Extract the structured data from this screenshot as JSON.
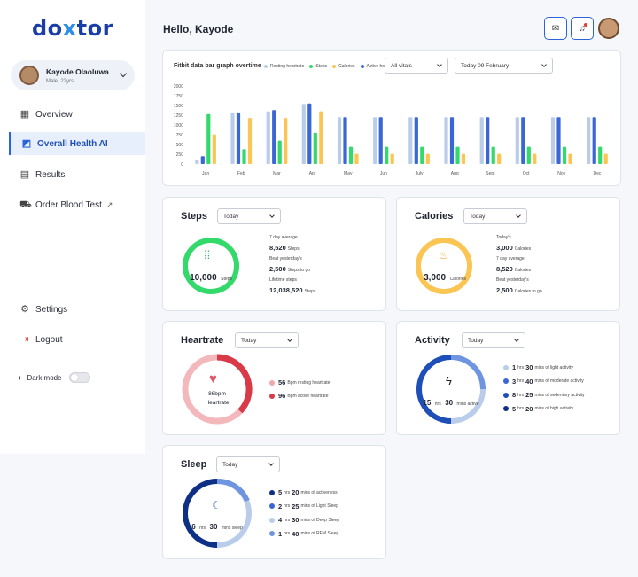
{
  "brand": {
    "left": "do",
    "x": "x",
    "right": "tor"
  },
  "profile": {
    "name": "Kayode Olaoluwa",
    "sub": "Male, 22yrs"
  },
  "nav": {
    "overview": "Overview",
    "health_ai": "Overall Health AI",
    "results": "Results",
    "order": "Order Blood Test",
    "settings": "Settings",
    "logout": "Logout"
  },
  "dark_mode": {
    "label": "Dark mode",
    "enabled": false
  },
  "header": {
    "greeting": "Hello, Kayode"
  },
  "chart": {
    "title": "Fitbit data bar graph overtime",
    "legend": [
      "Resting heartrate",
      "Steps",
      "Calories",
      "Active hours"
    ],
    "filter_vitals": "All vitals",
    "filter_date": "Today 09 February"
  },
  "chart_data": {
    "type": "bar",
    "categories": [
      "Jan",
      "Feb",
      "Mar",
      "Apr",
      "May",
      "Jun",
      "July",
      "Aug",
      "Sept",
      "Oct",
      "Nov",
      "Dec"
    ],
    "ylim": [
      0,
      2000
    ],
    "yticks": [
      "2000",
      "1750",
      "1500",
      "1250",
      "1000",
      "750",
      "500",
      "250",
      "0"
    ],
    "series": [
      {
        "name": "Resting heartrate",
        "color": "#b9cdeb",
        "values": [
          100,
          1320,
          1350,
          1540,
          1200,
          1200,
          1200,
          1200,
          1200,
          1200,
          1200,
          1200
        ]
      },
      {
        "name": "Active hours",
        "color": "#3a66d6",
        "values": [
          200,
          1320,
          1380,
          1550,
          1200,
          1200,
          1200,
          1200,
          1200,
          1200,
          1200,
          1200
        ]
      },
      {
        "name": "Steps",
        "color": "#34d96b",
        "values": [
          1280,
          380,
          600,
          800,
          440,
          440,
          440,
          440,
          440,
          440,
          440,
          440
        ]
      },
      {
        "name": "Calories",
        "color": "#fbc553",
        "values": [
          760,
          1180,
          1180,
          1350,
          260,
          260,
          260,
          260,
          260,
          260,
          260,
          260
        ]
      }
    ]
  },
  "steps": {
    "title": "Steps",
    "filter": "Today",
    "center": "10,000",
    "center_unit": "Steps",
    "stats": [
      {
        "label": "7 day average",
        "value": "8,520",
        "unit": "Steps"
      },
      {
        "label": "Beat yesterday's",
        "value": "2,500",
        "unit": "Steps to go"
      },
      {
        "label": "Lifetime steps",
        "value": "12,038,520",
        "unit": "Steps"
      }
    ]
  },
  "calories": {
    "title": "Calories",
    "filter": "Today",
    "center": "3,000",
    "center_unit": "Calories",
    "stats": [
      {
        "label": "Today's",
        "value": "3,000",
        "unit": "Calories"
      },
      {
        "label": "7 day average",
        "value": "8,520",
        "unit": "Calories"
      },
      {
        "label": "Beat yesterday's",
        "value": "2,500",
        "unit": "Calories to go"
      }
    ]
  },
  "heartrate": {
    "title": "Heartrate",
    "filter": "Today",
    "center": "86bpm",
    "center_unit": "Heartrate",
    "items": [
      {
        "value": "56",
        "text": "Bpm resting heartrate",
        "color": "#f2a7ab"
      },
      {
        "value": "96",
        "text": "Bpm active heartrate",
        "color": "#d93a48"
      }
    ]
  },
  "activity": {
    "title": "Activity",
    "filter": "Today",
    "hrs": "15",
    "hrs_u": "hrs",
    "mins": "30",
    "mins_u": "mins active",
    "items": [
      {
        "h": "1",
        "m": "30",
        "text": "mins of light activity",
        "color": "#b9cdeb"
      },
      {
        "h": "3",
        "m": "40",
        "text": "mins of moderate activity",
        "color": "#3a66d6"
      },
      {
        "h": "8",
        "m": "25",
        "text": "mins of sedentary activity",
        "color": "#1e4fb8"
      },
      {
        "h": "5",
        "m": "20",
        "text": "mins of high activity",
        "color": "#0e2f86"
      }
    ]
  },
  "sleep": {
    "title": "Sleep",
    "filter": "Today",
    "hrs": "6",
    "hrs_u": "hrs",
    "mins": "30",
    "mins_u": "mins sleep",
    "items": [
      {
        "h": "5",
        "m": "20",
        "text": "mins of activeness",
        "color": "#0e2f86"
      },
      {
        "h": "2",
        "m": "25",
        "text": "mins of Light Sleep",
        "color": "#3a66d6"
      },
      {
        "h": "4",
        "m": "30",
        "text": "mins of Deep Sleep",
        "color": "#b9cdeb"
      },
      {
        "h": "1",
        "m": "40",
        "text": "mins of REM Sleep",
        "color": "#6f95e0"
      }
    ]
  },
  "units": {
    "hrs": "hrs"
  }
}
